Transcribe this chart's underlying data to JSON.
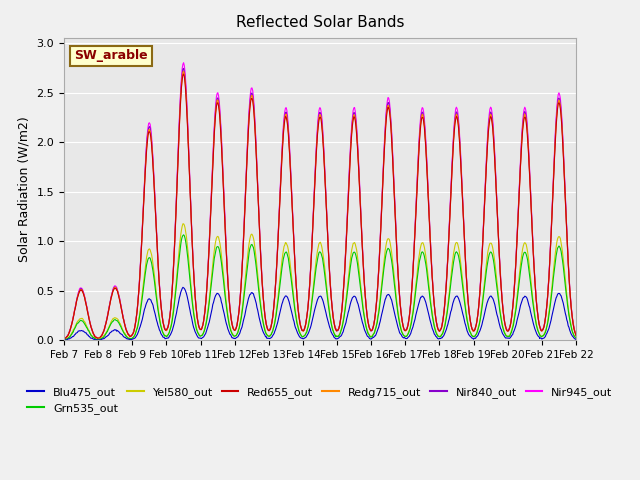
{
  "title": "Reflected Solar Bands",
  "ylabel": "Solar Radiation (W/m2)",
  "annotation": "SW_arable",
  "bg_color": "#e8e8e8",
  "fig_bg": "#f0f0f0",
  "series": [
    {
      "label": "Blu475_out",
      "color": "#0000cc"
    },
    {
      "label": "Grn535_out",
      "color": "#00cc00"
    },
    {
      "label": "Yel580_out",
      "color": "#cccc00"
    },
    {
      "label": "Red655_out",
      "color": "#cc0000"
    },
    {
      "label": "Redg715_out",
      "color": "#ff8800"
    },
    {
      "label": "Nir840_out",
      "color": "#8800cc"
    },
    {
      "label": "Nir945_out",
      "color": "#ff00ff"
    }
  ],
  "ylim": [
    0.0,
    3.05
  ],
  "date_labels": [
    "Feb 7",
    "Feb 8",
    "Feb 9",
    "Feb 10",
    "Feb 11",
    "Feb 12",
    "Feb 13",
    "Feb 14",
    "Feb 15",
    "Feb 16",
    "Feb 17",
    "Feb 18",
    "Feb 19",
    "Feb 20",
    "Feb 21",
    "Feb 22"
  ],
  "days": 15,
  "points_per_day": 48,
  "daily_peaks": [
    0.53,
    0.55,
    2.2,
    2.8,
    2.5,
    2.55,
    2.35,
    2.35,
    2.35,
    2.45,
    2.35,
    2.35,
    2.35,
    2.35,
    2.5
  ],
  "scale_factors": [
    0.19,
    0.38,
    0.42,
    0.96,
    0.97,
    0.98,
    1.0
  ]
}
